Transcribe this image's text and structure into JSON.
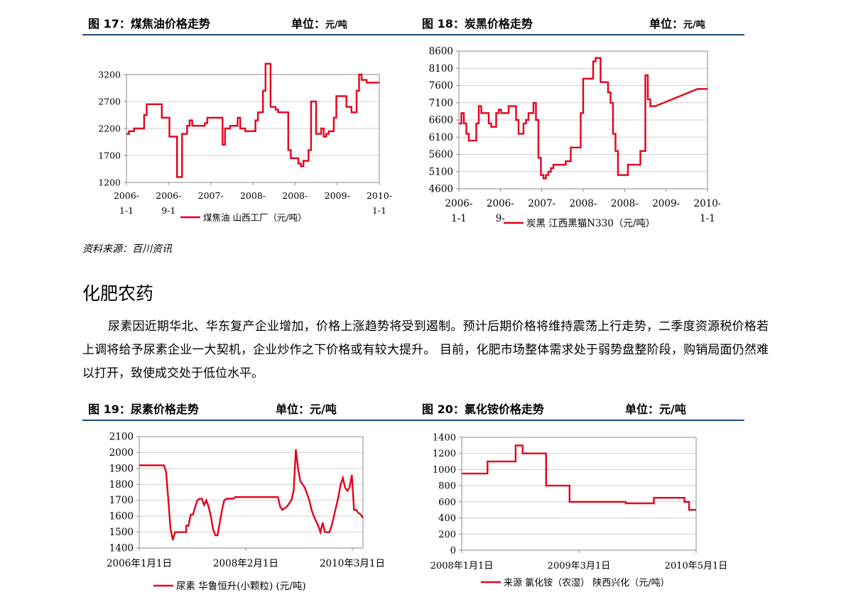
{
  "figures": [
    {
      "label": "图 17：",
      "title": "煤焦油价格走势",
      "unit_label": "单位：",
      "unit": "元/吨"
    },
    {
      "label": "图 18：",
      "title": "炭黑价格走势",
      "unit_label": "单位：",
      "unit": "元/吨"
    },
    {
      "label": "图 19：",
      "title": "尿素价格走势",
      "unit_label": "单位：",
      "unit": "元/吨"
    },
    {
      "label": "图 20：",
      "title": "氯化铵价格走势",
      "unit_label": "单位：",
      "unit": "元/吨"
    }
  ],
  "source": "资料来源：百川资讯",
  "section_title": "化肥农药",
  "paragraph": "尿素因近期华北、华东复产企业增加，价格上涨趋势将受到遏制。预计后期价格将维持震荡上行走势，二季度资源税价格若上调将给予尿素企业一大契机，企业炒作之下价格或有较大提升。 目前，化肥市场整体需求处于弱势盘整阶段，购销局面仍然难以打开，致使成交处于低位水平。",
  "chart_data": [
    {
      "type": "line",
      "ylim": [
        1200,
        3200
      ],
      "yticks": [
        1200,
        1700,
        2200,
        2700,
        3200
      ],
      "xticks": [
        [
          "2006-",
          "1-1"
        ],
        [
          "2006-",
          "9-1"
        ],
        [
          "2007-",
          ""
        ],
        [
          "2008-",
          ""
        ],
        [
          "2008-",
          ""
        ],
        [
          "2009-",
          ""
        ],
        [
          "2010-",
          "1-1"
        ]
      ],
      "xlim": [
        0,
        100
      ],
      "series": [
        {
          "name": "煤焦油 山西工厂（元/吨）",
          "color": "#e3001b",
          "x": [
            0,
            1,
            1,
            3,
            3,
            7,
            7,
            8,
            8,
            14,
            14,
            17,
            17,
            20,
            20,
            22,
            22,
            24,
            24,
            25,
            25,
            26,
            26,
            31,
            31,
            32,
            32,
            38,
            38,
            39,
            39,
            41,
            41,
            44,
            44,
            45,
            45,
            47,
            47,
            51,
            51,
            52,
            52,
            54,
            54,
            55,
            55,
            57,
            57,
            59,
            59,
            60,
            60,
            64,
            64,
            65,
            65,
            68,
            68,
            69,
            69,
            70,
            70,
            72,
            72,
            73,
            73,
            75,
            75,
            77,
            77,
            78,
            78,
            79,
            79,
            80,
            80,
            82,
            82,
            83,
            83,
            87,
            87,
            89,
            89,
            91,
            91,
            92,
            92,
            93,
            93,
            95,
            95,
            96,
            96,
            100
          ],
          "y": [
            2100,
            2100,
            2150,
            2150,
            2200,
            2200,
            2450,
            2450,
            2650,
            2650,
            2400,
            2400,
            2050,
            2050,
            1300,
            1300,
            2100,
            2100,
            2250,
            2250,
            2350,
            2350,
            2250,
            2250,
            2300,
            2300,
            2400,
            2400,
            1900,
            1900,
            2200,
            2200,
            2250,
            2250,
            2400,
            2400,
            2200,
            2200,
            2150,
            2150,
            2350,
            2350,
            2500,
            2500,
            2900,
            2900,
            3400,
            3400,
            2600,
            2600,
            2550,
            2550,
            2500,
            2500,
            1800,
            1800,
            1650,
            1650,
            1550,
            1550,
            1500,
            1500,
            1600,
            1600,
            1800,
            1800,
            2700,
            2700,
            2100,
            2100,
            2200,
            2200,
            2050,
            2050,
            2100,
            2100,
            2150,
            2150,
            2400,
            2400,
            2800,
            2800,
            2600,
            2600,
            2500,
            2500,
            2900,
            2900,
            3200,
            3200,
            3100,
            3100,
            3050,
            3050,
            3050,
            3050
          ]
        }
      ]
    },
    {
      "type": "line",
      "ylim": [
        4600,
        8600
      ],
      "yticks": [
        4600,
        5100,
        5600,
        6100,
        6600,
        7100,
        7600,
        8100,
        8600
      ],
      "xticks": [
        [
          "2006-",
          "1-1"
        ],
        [
          "2006-",
          "9-"
        ],
        [
          "2007-",
          ""
        ],
        [
          "2008-",
          ""
        ],
        [
          "2008-",
          ""
        ],
        [
          "2009-",
          ""
        ],
        [
          "2010-",
          "1-1"
        ]
      ],
      "xlim": [
        0,
        100
      ],
      "series": [
        {
          "name": "炭黑 江西黑猫N330（元/吨）",
          "color": "#e3001b",
          "x": [
            0,
            1,
            1,
            2,
            2,
            3,
            3,
            4,
            4,
            7,
            7,
            8,
            8,
            9,
            9,
            12,
            12,
            13,
            13,
            15,
            15,
            16,
            16,
            17,
            17,
            20,
            20,
            23,
            23,
            24,
            24,
            26,
            26,
            27,
            27,
            28,
            28,
            30,
            30,
            31,
            31,
            32,
            32,
            33,
            33,
            34,
            34,
            35,
            35,
            36,
            36,
            37,
            37,
            38,
            38,
            40,
            40,
            41,
            41,
            43,
            43,
            45,
            45,
            49,
            49,
            50,
            50,
            54,
            54,
            55,
            55,
            57,
            57,
            60,
            60,
            61,
            61,
            62,
            62,
            63,
            63,
            64,
            64,
            65,
            65,
            66,
            66,
            67,
            67,
            68,
            68,
            69,
            69,
            73,
            73,
            75,
            75,
            76,
            76,
            77,
            77,
            78,
            78,
            79,
            79,
            96,
            96,
            100
          ],
          "y": [
            6500,
            6500,
            6800,
            6800,
            6500,
            6500,
            6200,
            6200,
            6000,
            6000,
            6500,
            6500,
            7000,
            7000,
            6800,
            6800,
            6500,
            6500,
            6400,
            6400,
            6800,
            6800,
            6900,
            6900,
            6800,
            6800,
            7000,
            7000,
            6600,
            6600,
            6200,
            6200,
            6500,
            6500,
            6600,
            6600,
            6800,
            6800,
            7100,
            7100,
            6600,
            6600,
            5500,
            5500,
            5000,
            5000,
            4900,
            4900,
            5000,
            5000,
            5100,
            5100,
            5200,
            5200,
            5300,
            5300,
            5300,
            5300,
            5300,
            5300,
            5400,
            5400,
            5800,
            5800,
            6800,
            6800,
            7800,
            7800,
            8300,
            8300,
            8400,
            8400,
            7700,
            7700,
            7400,
            7400,
            7100,
            7100,
            6200,
            6200,
            5700,
            5700,
            5000,
            5000,
            5000,
            5000,
            5000,
            5000,
            5000,
            5000,
            5300,
            5300,
            5300,
            5300,
            5700,
            5700,
            7900,
            7900,
            7200,
            7200,
            7000,
            7000,
            7000,
            7000,
            7000,
            7500,
            7500,
            7500
          ]
        }
      ]
    },
    {
      "type": "line",
      "ylim": [
        1400,
        2100
      ],
      "yticks": [
        1400,
        1500,
        1600,
        1700,
        1800,
        1900,
        2000,
        2100
      ],
      "xticks": [
        [
          "2006年1月1日"
        ],
        [
          "2008年2月1日"
        ],
        [
          "2010年3月1日"
        ]
      ],
      "xlim": [
        0,
        100
      ],
      "series": [
        {
          "name": "尿素 华鲁恒升(小颗粒) (元/吨)",
          "color": "#e3001b",
          "x": [
            0,
            11,
            12,
            13,
            14,
            15,
            16,
            20,
            21,
            21,
            22,
            23,
            24,
            25,
            26,
            27,
            28,
            29,
            30,
            31,
            32,
            33,
            34,
            35,
            36,
            37,
            38,
            39,
            40,
            41,
            42,
            43,
            44,
            45,
            62,
            63,
            64,
            66,
            67,
            68,
            69,
            70,
            71,
            72,
            74,
            75,
            76,
            77,
            78,
            80,
            81,
            82,
            83,
            84,
            85,
            86,
            87,
            88,
            89,
            90,
            91,
            92,
            93,
            94,
            95,
            96,
            97,
            98,
            99,
            100
          ],
          "y": [
            1920,
            1920,
            1880,
            1700,
            1520,
            1450,
            1500,
            1500,
            1500,
            1540,
            1540,
            1610,
            1610,
            1660,
            1700,
            1710,
            1710,
            1670,
            1700,
            1660,
            1600,
            1520,
            1480,
            1480,
            1560,
            1640,
            1700,
            1710,
            1710,
            1710,
            1710,
            1720,
            1720,
            1720,
            1720,
            1660,
            1640,
            1660,
            1680,
            1700,
            1760,
            2020,
            1900,
            1820,
            1780,
            1740,
            1700,
            1640,
            1600,
            1540,
            1500,
            1560,
            1500,
            1500,
            1500,
            1540,
            1600,
            1660,
            1720,
            1800,
            1840,
            1780,
            1760,
            1780,
            1860,
            1640,
            1640,
            1620,
            1610,
            1590
          ]
        }
      ]
    },
    {
      "type": "line",
      "ylim": [
        0,
        1400
      ],
      "yticks": [
        0,
        200,
        400,
        600,
        800,
        1000,
        1200,
        1400
      ],
      "xticks": [
        [
          "2008年1月1日"
        ],
        [
          "2009年3月1日"
        ],
        [
          "2010年5月1日"
        ]
      ],
      "xlim": [
        0,
        100
      ],
      "series": [
        {
          "name": "来源 氯化铵（农湿） 陕西兴化（元/吨）",
          "color": "#e3001b",
          "x": [
            0,
            11,
            11,
            23,
            23,
            26,
            26,
            36,
            36,
            46,
            46,
            70,
            70,
            82,
            82,
            95,
            95,
            97,
            97,
            100
          ],
          "y": [
            950,
            950,
            1100,
            1100,
            1300,
            1300,
            1200,
            1200,
            800,
            800,
            600,
            600,
            580,
            580,
            650,
            650,
            600,
            600,
            500,
            500
          ]
        }
      ]
    }
  ]
}
